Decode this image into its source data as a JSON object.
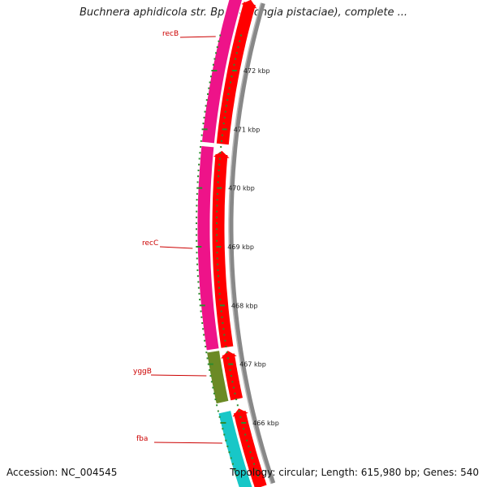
{
  "header": {
    "title": "Buchnera aphidicola str. Bp (Baizongia pistaciae), complete ..."
  },
  "footer": {
    "accession": "Accession: NC_004545",
    "summary": "Topology: circular; Length: 615,980 bp; Genes: 540"
  },
  "ticks": {
    "unit": "kbp",
    "labels": [
      "472 kbp",
      "471 kbp",
      "470 kbp",
      "469 kbp",
      "468 kbp",
      "467 kbp",
      "466 kbp"
    ]
  },
  "genes": [
    {
      "name": "recB",
      "start_kbp": 472.6,
      "end_kbp": 471.1,
      "track": "magenta"
    },
    {
      "name": "recC",
      "start_kbp": 471.1,
      "end_kbp": 467.7,
      "track": "magenta"
    },
    {
      "name": "yggB",
      "start_kbp": 467.7,
      "end_kbp": 466.8,
      "track": "olive"
    },
    {
      "name": "fba",
      "start_kbp": 466.7,
      "end_kbp": 465.6,
      "track": "cyan"
    }
  ],
  "colors": {
    "forward_strand": "#ee1389",
    "cds": "#ff0000",
    "olive": "#6b8a25",
    "cyan": "#18c7c7",
    "backbone": "#888888",
    "ticks": "#2e8b2e",
    "gene_label": "#cc0000"
  }
}
